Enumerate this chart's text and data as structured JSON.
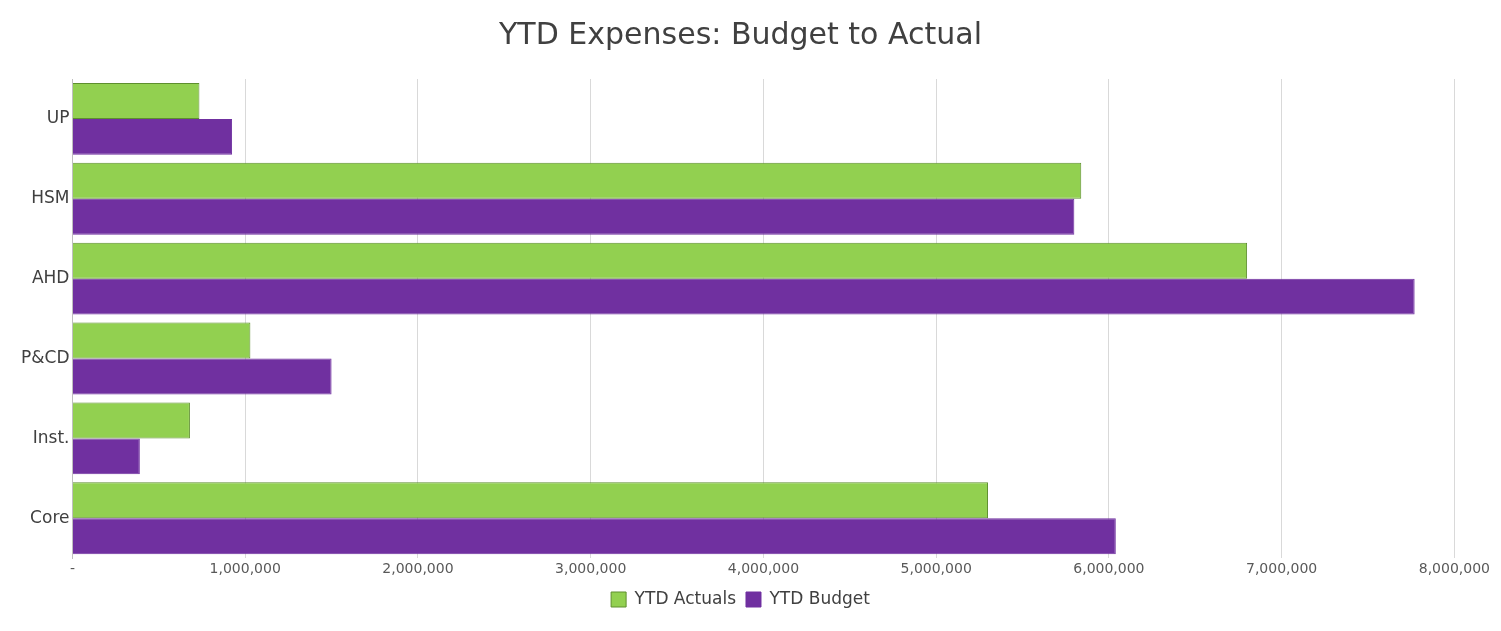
{
  "chart_data": {
    "type": "bar",
    "orientation": "horizontal",
    "title": "YTD Expenses: Budget to Actual",
    "categories": [
      "UP",
      "HSM",
      "AHD",
      "P&CD",
      "Inst.",
      "Core"
    ],
    "series": [
      {
        "name": "YTD Actuals",
        "color": "#92d050",
        "values": [
          735000,
          5840000,
          6800000,
          1030000,
          680000,
          5300000
        ]
      },
      {
        "name": "YTD Budget",
        "color": "#7030a0",
        "values": [
          924000,
          5800000,
          7770000,
          1500000,
          390000,
          6040000
        ]
      }
    ],
    "xlim": [
      0,
      8000000
    ],
    "xticks": [
      {
        "value": 0,
        "label": "-"
      },
      {
        "value": 1000000,
        "label": "1,000,000"
      },
      {
        "value": 2000000,
        "label": "2,000,000"
      },
      {
        "value": 3000000,
        "label": "3,000,000"
      },
      {
        "value": 4000000,
        "label": "4,000,000"
      },
      {
        "value": 5000000,
        "label": "5,000,000"
      },
      {
        "value": 6000000,
        "label": "6,000,000"
      },
      {
        "value": 7000000,
        "label": "7,000,000"
      },
      {
        "value": 8000000,
        "label": "8,000,000"
      }
    ],
    "grid": "x",
    "legend": "bottom"
  }
}
